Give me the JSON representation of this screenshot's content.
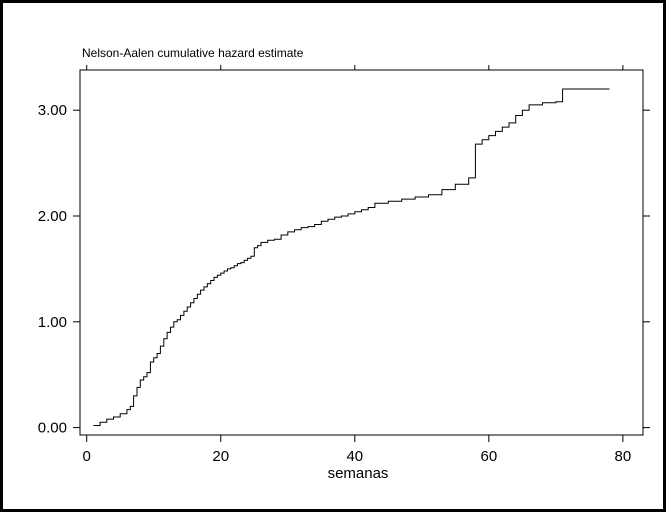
{
  "chart_data": {
    "type": "line",
    "title": "Nelson-Aalen cumulative hazard estimate",
    "xlabel": "semanas",
    "ylabel": "",
    "xlim": [
      -1,
      83
    ],
    "ylim": [
      -0.07,
      3.38
    ],
    "x_ticks": [
      0,
      20,
      40,
      60,
      80
    ],
    "x_tick_labels": [
      "0",
      "20",
      "40",
      "60",
      "80"
    ],
    "y_ticks": [
      0,
      1,
      2,
      3
    ],
    "y_tick_labels": [
      "0.00",
      "1.00",
      "2.00",
      "3.00"
    ],
    "step": true,
    "grid": false,
    "series": [
      {
        "x": [
          1,
          2,
          3,
          4,
          5,
          6,
          6.5,
          7,
          7.5,
          8,
          8.5,
          9,
          9.5,
          10,
          10.5,
          11,
          11.5,
          12,
          12.5,
          13,
          13.5,
          14,
          14.5,
          15,
          15.5,
          16,
          16.5,
          17,
          17.5,
          18,
          18.5,
          19,
          19.5,
          20,
          20.5,
          21,
          21.5,
          22,
          22.5,
          23,
          23.5,
          24,
          24.5,
          25,
          25.5,
          26,
          27,
          28,
          29,
          30,
          31,
          32,
          33,
          34,
          35,
          36,
          37,
          38,
          39,
          40,
          41,
          42,
          43,
          45,
          47,
          49,
          51,
          53,
          55,
          57,
          58,
          59,
          60,
          61,
          62,
          63,
          64,
          65,
          66,
          68,
          70,
          71,
          78
        ],
        "y": [
          0.02,
          0.05,
          0.08,
          0.1,
          0.13,
          0.17,
          0.2,
          0.3,
          0.38,
          0.45,
          0.48,
          0.52,
          0.62,
          0.66,
          0.7,
          0.77,
          0.84,
          0.9,
          0.95,
          1.0,
          1.02,
          1.06,
          1.1,
          1.14,
          1.18,
          1.22,
          1.26,
          1.3,
          1.33,
          1.36,
          1.39,
          1.42,
          1.44,
          1.46,
          1.48,
          1.5,
          1.51,
          1.53,
          1.55,
          1.56,
          1.58,
          1.6,
          1.62,
          1.7,
          1.72,
          1.75,
          1.77,
          1.78,
          1.82,
          1.85,
          1.87,
          1.89,
          1.9,
          1.92,
          1.95,
          1.97,
          1.99,
          2.0,
          2.02,
          2.04,
          2.06,
          2.08,
          2.12,
          2.14,
          2.16,
          2.18,
          2.2,
          2.25,
          2.3,
          2.36,
          2.68,
          2.72,
          2.76,
          2.8,
          2.84,
          2.88,
          2.95,
          3.0,
          3.05,
          3.07,
          3.08,
          3.2,
          3.2
        ]
      }
    ]
  }
}
